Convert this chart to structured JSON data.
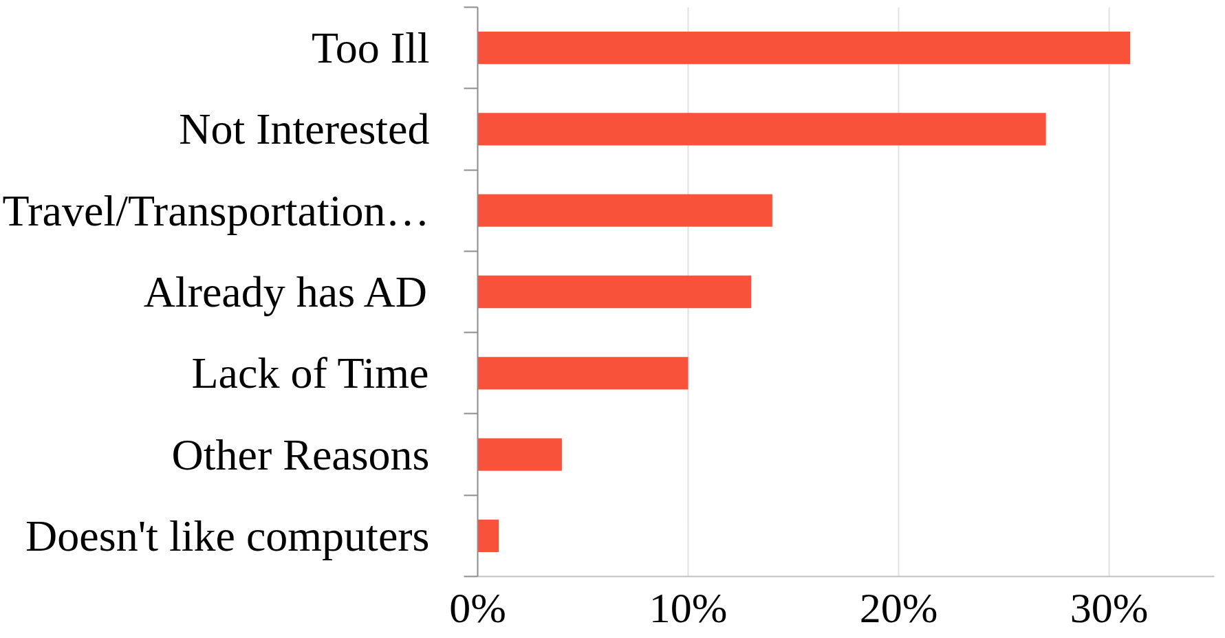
{
  "chart_data": {
    "type": "bar",
    "orientation": "horizontal",
    "categories": [
      "Too Ill",
      "Not Interested",
      "Travel/Transportation…",
      "Already has AD",
      "Lack of Time",
      "Other Reasons",
      "Doesn't like computers"
    ],
    "values": [
      31,
      27,
      14,
      13,
      10,
      4,
      1
    ],
    "color": "#f9523a",
    "xlim": [
      0,
      35
    ],
    "xticks": [
      {
        "value": 0,
        "label": "0%"
      },
      {
        "value": 10,
        "label": "10%"
      },
      {
        "value": 20,
        "label": "20%"
      },
      {
        "value": 30,
        "label": "30%"
      }
    ],
    "grid": "x"
  }
}
